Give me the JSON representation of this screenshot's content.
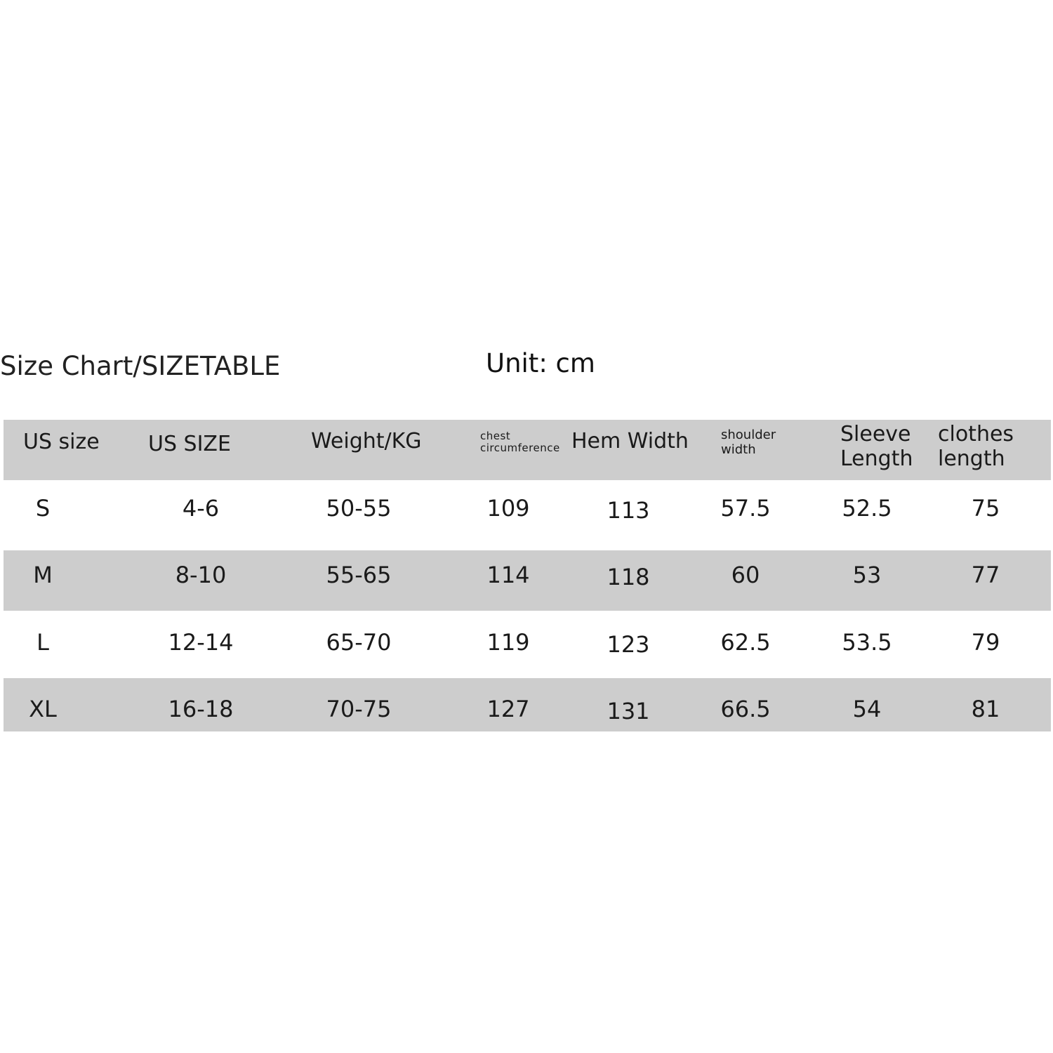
{
  "title": "Size Chart/SIZETABLE",
  "unit": "Unit: cm",
  "colors": {
    "row_band": "#cdcdcd",
    "background": "#ffffff",
    "text": "#1a1a1a"
  },
  "headers": {
    "us_size": "US size",
    "us_size_num": "US SIZE",
    "weight": "Weight/KG",
    "chest_1": "chest",
    "chest_2": "circumference",
    "hem": "Hem Width",
    "shoulder_1": "shoulder",
    "shoulder_2": "width",
    "sleeve_1": "Sleeve",
    "sleeve_2": "Length",
    "length_1": "clothes",
    "length_2": "length"
  },
  "rows": [
    [
      "S",
      "4-6",
      "50-55",
      "109",
      "113",
      "57.5",
      "52.5",
      "75"
    ],
    [
      "M",
      "8-10",
      "55-65",
      "114",
      "118",
      "60",
      "53",
      "77"
    ],
    [
      "L",
      "12-14",
      "65-70",
      "119",
      "123",
      "62.5",
      "53.5",
      "79"
    ],
    [
      "XL",
      "16-18",
      "70-75",
      "127",
      "131",
      "66.5",
      "54",
      "81"
    ]
  ]
}
